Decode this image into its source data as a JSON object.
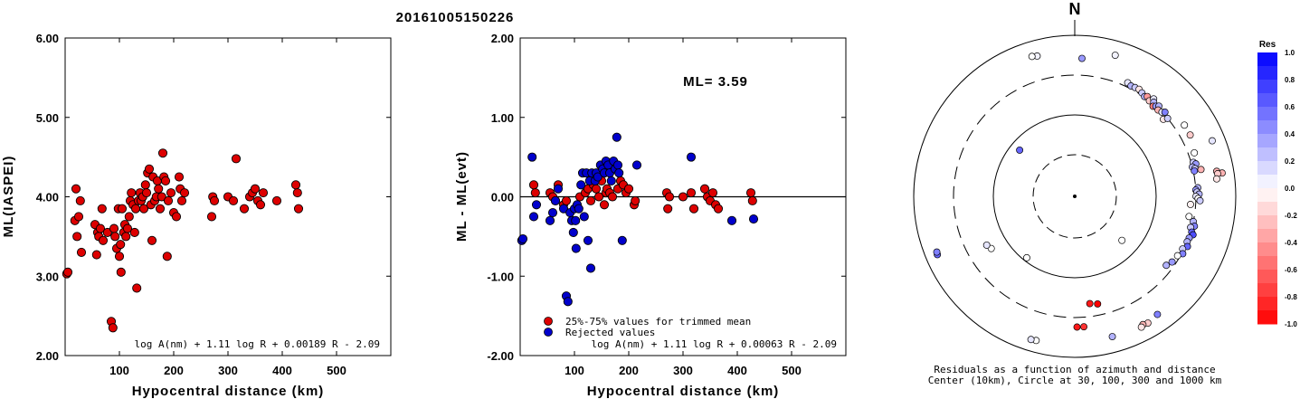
{
  "title": "20161005150226",
  "chart_data": [
    {
      "type": "scatter",
      "xlabel": "Hypocentral distance (km)",
      "ylabel": "ML(IASPEI)",
      "xlim": [
        0,
        600
      ],
      "ylim": [
        2.0,
        6.0
      ],
      "xticks": [
        "100",
        "200",
        "300",
        "400",
        "500"
      ],
      "yticks": [
        "2.00",
        "3.00",
        "4.00",
        "5.00",
        "6.00"
      ],
      "formula": "log A(nm) + 1.11 log R + 0.00189 R - 2.09",
      "series": [
        {
          "color": "#dd0000",
          "x": [
            3,
            5,
            18,
            20,
            22,
            25,
            28,
            30,
            55,
            58,
            60,
            62,
            65,
            68,
            70,
            78,
            85,
            88,
            90,
            92,
            95,
            98,
            100,
            102,
            103,
            105,
            108,
            110,
            112,
            115,
            118,
            120,
            122,
            125,
            128,
            130,
            132,
            135,
            138,
            140,
            143,
            145,
            148,
            150,
            152,
            155,
            158,
            160,
            162,
            165,
            168,
            170,
            172,
            175,
            178,
            180,
            182,
            185,
            188,
            190,
            195,
            200,
            205,
            210,
            212,
            215,
            220,
            270,
            272,
            275,
            300,
            310,
            315,
            330,
            340,
            345,
            350,
            355,
            360,
            365,
            390,
            425,
            428,
            430
          ],
          "y": [
            3.03,
            3.05,
            3.7,
            4.1,
            3.5,
            3.75,
            3.95,
            3.3,
            3.65,
            3.27,
            3.55,
            3.5,
            3.6,
            3.85,
            3.45,
            3.55,
            2.43,
            2.35,
            3.6,
            3.5,
            3.35,
            3.85,
            3.25,
            3.4,
            3.05,
            3.85,
            3.55,
            3.65,
            3.5,
            3.6,
            3.75,
            3.95,
            4.05,
            3.9,
            3.55,
            3.85,
            2.85,
            3.95,
            4.05,
            3.95,
            4.0,
            3.85,
            4.15,
            4.05,
            4.3,
            4.35,
            3.9,
            3.45,
            4.25,
            3.95,
            4.0,
            4.2,
            4.1,
            3.85,
            4.0,
            4.55,
            4.25,
            4.2,
            3.25,
            3.95,
            4.05,
            3.8,
            3.75,
            4.25,
            4.1,
            3.95,
            4.05,
            3.75,
            4.0,
            3.95,
            4.0,
            3.95,
            4.48,
            3.85,
            4.0,
            4.05,
            4.1,
            3.95,
            3.9,
            4.05,
            3.95,
            4.15,
            4.05,
            3.85
          ]
        }
      ]
    },
    {
      "type": "scatter",
      "xlabel": "Hypocentral distance (km)",
      "ylabel": "ML - ML(evt)",
      "xlim": [
        0,
        600
      ],
      "ylim": [
        -2.0,
        2.0
      ],
      "xticks": [
        "100",
        "200",
        "300",
        "400",
        "500"
      ],
      "yticks": [
        "-2.00",
        "-1.00",
        "0.00",
        "1.00",
        "2.00"
      ],
      "annotation": "ML= 3.59",
      "formula": "log A(nm) + 1.11 log R + 0.00063 R - 2.09",
      "legend": [
        "25%-75% values for trimmed mean",
        "Rejected values"
      ],
      "series": [
        {
          "name": "25%-75% values for trimmed mean",
          "color": "#dd0000",
          "x": [
            25,
            28,
            55,
            60,
            65,
            70,
            80,
            85,
            110,
            120,
            125,
            130,
            135,
            140,
            145,
            150,
            155,
            158,
            160,
            165,
            170,
            180,
            185,
            190,
            195,
            200,
            210,
            212,
            270,
            272,
            275,
            300,
            315,
            320,
            340,
            345,
            350,
            355,
            360,
            365,
            425,
            428
          ],
          "y": [
            0.15,
            0.05,
            0.05,
            0.0,
            -0.05,
            0.15,
            -0.1,
            -0.05,
            0.0,
            0.05,
            0.1,
            -0.05,
            0.15,
            0.1,
            0.0,
            0.2,
            -0.1,
            0.05,
            0.1,
            0.05,
            0.0,
            0.1,
            0.2,
            0.15,
            0.05,
            0.1,
            -0.1,
            -0.05,
            0.05,
            -0.15,
            0.0,
            0.0,
            0.05,
            -0.15,
            0.1,
            0.0,
            -0.05,
            0.05,
            -0.1,
            -0.15,
            0.05,
            -0.05
          ]
        },
        {
          "name": "Rejected values",
          "color": "#0000cc",
          "x": [
            3,
            5,
            22,
            25,
            30,
            55,
            60,
            65,
            70,
            80,
            85,
            88,
            92,
            95,
            98,
            100,
            102,
            103,
            105,
            108,
            112,
            115,
            118,
            122,
            125,
            128,
            130,
            132,
            138,
            140,
            143,
            148,
            152,
            155,
            158,
            162,
            165,
            168,
            172,
            175,
            178,
            180,
            182,
            188,
            215,
            315,
            390,
            430
          ],
          "y": [
            -0.55,
            -0.53,
            0.5,
            -0.25,
            -0.1,
            -0.3,
            -0.2,
            -0.05,
            0.1,
            -0.15,
            -1.25,
            -1.32,
            -0.2,
            -0.3,
            -0.45,
            -0.15,
            -0.3,
            -0.65,
            -0.1,
            -0.15,
            0.15,
            0.3,
            -0.25,
            0.3,
            -0.55,
            0.2,
            -0.9,
            0.3,
            0.2,
            0.3,
            0.25,
            0.4,
            0.35,
            0.3,
            0.45,
            0.4,
            0.3,
            0.2,
            0.45,
            0.35,
            0.75,
            0.4,
            0.3,
            -0.55,
            0.4,
            0.5,
            -0.3,
            -0.28
          ]
        }
      ]
    },
    {
      "type": "scatter",
      "subtype": "polar-residuals",
      "north_label": "N",
      "caption_line1": "Residuals as a function of azimuth and distance",
      "caption_line2": "Center (10km), Circle at 30, 100, 300 and 1000 km",
      "rings_km": [
        30,
        100,
        300,
        1000
      ],
      "colorbar": {
        "title": "Res",
        "min": -1.0,
        "max": 1.0,
        "ticks": [
          "1.0",
          "0.8",
          "0.6",
          "0.4",
          "0.2",
          "0.0",
          "-0.2",
          "-0.4",
          "-0.6",
          "-0.8",
          "-1.0"
        ]
      },
      "points": [
        {
          "az": 25,
          "dist": 340,
          "res": 0.1
        },
        {
          "az": 27,
          "dist": 325,
          "res": 0.3
        },
        {
          "az": 29,
          "dist": 330,
          "res": 0.2
        },
        {
          "az": 31,
          "dist": 335,
          "res": -0.1
        },
        {
          "az": 33,
          "dist": 320,
          "res": 0.2
        },
        {
          "az": 35,
          "dist": 305,
          "res": 0.3
        },
        {
          "az": 36,
          "dist": 320,
          "res": -0.4
        },
        {
          "az": 38,
          "dist": 300,
          "res": -0.2
        },
        {
          "az": 39,
          "dist": 340,
          "res": 0.1
        },
        {
          "az": 40,
          "dist": 315,
          "res": 0.3
        },
        {
          "az": 41,
          "dist": 285,
          "res": -0.5
        },
        {
          "az": 42,
          "dist": 300,
          "res": 0.4
        },
        {
          "az": 43,
          "dist": 320,
          "res": 0.3
        },
        {
          "az": 44,
          "dist": 290,
          "res": -0.3
        },
        {
          "az": 46,
          "dist": 300,
          "res": 0.1
        },
        {
          "az": 47,
          "dist": 320,
          "res": 0.5
        },
        {
          "az": 49,
          "dist": 270,
          "res": -0.1
        },
        {
          "az": 50,
          "dist": 300,
          "res": 0.2
        },
        {
          "az": 16,
          "dist": 650,
          "res": 0.05
        },
        {
          "az": 3,
          "dist": 500,
          "res": 0.4
        },
        {
          "az": 345,
          "dist": 620,
          "res": 0.05
        },
        {
          "az": 343,
          "dist": 640,
          "res": 0.0
        },
        {
          "az": 57,
          "dist": 400,
          "res": 0.0
        },
        {
          "az": 62,
          "dist": 400,
          "res": -0.2
        },
        {
          "az": 68,
          "dist": 680,
          "res": 0.1
        },
        {
          "az": 70,
          "dist": 360,
          "res": 0.0
        },
        {
          "az": 74,
          "dist": 320,
          "res": 0.2
        },
        {
          "az": 75,
          "dist": 340,
          "res": 0.4
        },
        {
          "az": 76,
          "dist": 300,
          "res": 0.3
        },
        {
          "az": 77,
          "dist": 320,
          "res": 0.2
        },
        {
          "az": 78,
          "dist": 310,
          "res": 0.5
        },
        {
          "az": 78,
          "dist": 380,
          "res": -0.3
        },
        {
          "az": 80,
          "dist": 600,
          "res": -0.3
        },
        {
          "az": 81,
          "dist": 700,
          "res": -0.3
        },
        {
          "az": 81,
          "dist": 610,
          "res": -0.2
        },
        {
          "az": 83,
          "dist": 580,
          "res": -0.1
        },
        {
          "az": 86,
          "dist": 320,
          "res": 0.3
        },
        {
          "az": 87,
          "dist": 300,
          "res": 0.4
        },
        {
          "az": 88,
          "dist": 310,
          "res": 0.2
        },
        {
          "az": 89,
          "dist": 330,
          "res": 0.3
        },
        {
          "az": 90,
          "dist": 300,
          "res": 0.1
        },
        {
          "az": 91,
          "dist": 320,
          "res": 0.0
        },
        {
          "az": 92,
          "dist": 340,
          "res": 0.2
        },
        {
          "az": 94,
          "dist": 260,
          "res": -0.05
        },
        {
          "az": 100,
          "dist": 260,
          "res": 0.0
        },
        {
          "az": 102,
          "dist": 300,
          "res": 0.3
        },
        {
          "az": 104,
          "dist": 320,
          "res": 0.5
        },
        {
          "az": 105,
          "dist": 290,
          "res": 0.2
        },
        {
          "az": 107,
          "dist": 310,
          "res": 0.6
        },
        {
          "az": 108,
          "dist": 330,
          "res": 0.7
        },
        {
          "az": 110,
          "dist": 305,
          "res": 0.4
        },
        {
          "az": 112,
          "dist": 300,
          "res": 0.3
        },
        {
          "az": 114,
          "dist": 320,
          "res": 0.6
        },
        {
          "az": 116,
          "dist": 290,
          "res": 0.2
        },
        {
          "az": 118,
          "dist": 310,
          "res": 0.5
        },
        {
          "az": 120,
          "dist": 280,
          "res": 0.0
        },
        {
          "az": 124,
          "dist": 270,
          "res": 0.4
        },
        {
          "az": 127,
          "dist": 250,
          "res": 0.3
        },
        {
          "az": 133,
          "dist": 60,
          "res": 0.0
        },
        {
          "az": 145,
          "dist": 600,
          "res": 0.5
        },
        {
          "az": 150,
          "dist": 640,
          "res": -0.2
        },
        {
          "az": 152,
          "dist": 620,
          "res": -0.3
        },
        {
          "az": 153,
          "dist": 650,
          "res": -0.1
        },
        {
          "az": 168,
          "dist": 220,
          "res": -1.0
        },
        {
          "az": 172,
          "dist": 210,
          "res": -0.9
        },
        {
          "az": 176,
          "dist": 400,
          "res": -0.8
        },
        {
          "az": 179,
          "dist": 400,
          "res": -0.9
        },
        {
          "az": 165,
          "dist": 620,
          "res": 0.3
        },
        {
          "az": 195,
          "dist": 700,
          "res": 0.0
        },
        {
          "az": 197,
          "dist": 710,
          "res": 0.1
        },
        {
          "az": 218,
          "dist": 90,
          "res": 0.0
        },
        {
          "az": 238,
          "dist": 160,
          "res": 0.0
        },
        {
          "az": 241,
          "dist": 170,
          "res": 0.1
        },
        {
          "az": 247,
          "dist": 700,
          "res": 0.6
        },
        {
          "az": 248,
          "dist": 690,
          "res": 0.5
        },
        {
          "az": 310,
          "dist": 75,
          "res": 0.6
        }
      ]
    }
  ]
}
